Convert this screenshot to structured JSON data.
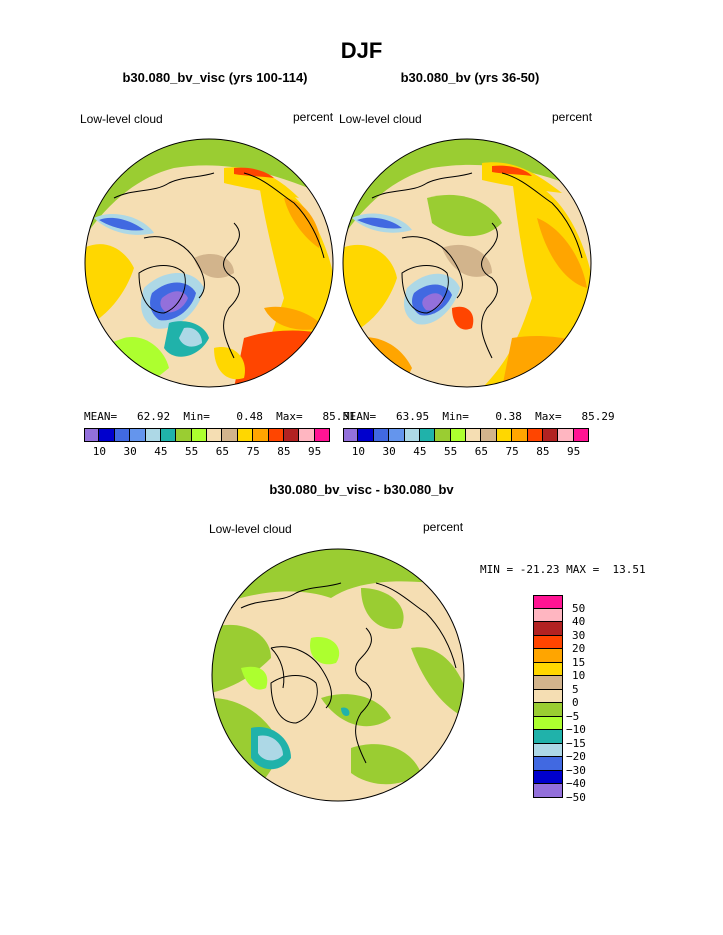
{
  "page": {
    "title": "DJF",
    "variable": "Low-level cloud",
    "units": "percent"
  },
  "panels": [
    {
      "case": "b30.080_bv_visc (yrs 100-114)",
      "stats": {
        "mean_label": "MEAN=",
        "mean": "62.92",
        "min_label": "Min=",
        "min": "0.48",
        "max_label": "Max=",
        "max": "85.51"
      }
    },
    {
      "case": "b30.080_bv (yrs 36-50)",
      "stats": {
        "mean_label": "MEAN=",
        "mean": "63.95",
        "min_label": "Min=",
        "min": "0.38",
        "max_label": "Max=",
        "max": "85.29"
      }
    }
  ],
  "colorbar": {
    "colors": [
      "#9370db",
      "#0000cd",
      "#4169e1",
      "#6495ed",
      "#add8e6",
      "#20b2aa",
      "#9acd32",
      "#adff2f",
      "#f5deb3",
      "#d2b48c",
      "#ffd700",
      "#ffa500",
      "#ff4500",
      "#b22222",
      "#ffb6c1",
      "#ff1493"
    ],
    "tick_labels": [
      "10",
      "30",
      "45",
      "55",
      "65",
      "75",
      "85",
      "95"
    ]
  },
  "difference": {
    "title": "b30.080_bv_visc - b30.080_bv",
    "minmax": "MIN = -21.23 MAX =  13.51",
    "legend_colors": [
      "#ff1493",
      "#ffb6c1",
      "#b22222",
      "#ff4500",
      "#ffa500",
      "#ffd700",
      "#d2b48c",
      "#f5deb3",
      "#9acd32",
      "#adff2f",
      "#20b2aa",
      "#add8e6",
      "#4169e1",
      "#0000cd",
      "#9370db"
    ],
    "legend_labels": [
      "50",
      "40",
      "30",
      "20",
      "15",
      "10",
      "5",
      "0",
      "-5",
      "-10",
      "-15",
      "-20",
      "-30",
      "-40",
      "-50"
    ]
  }
}
